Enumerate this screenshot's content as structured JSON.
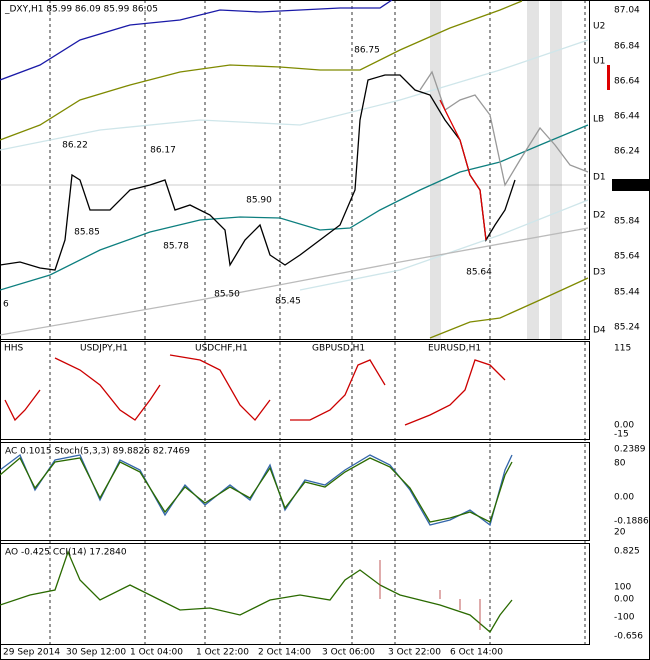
{
  "header": {
    "symbol_info": "_DXY,H1  85.99 86.09 85.99 86.05"
  },
  "price_axis": {
    "labels": [
      "87.04",
      "86.84",
      "86.64",
      "86.44",
      "86.24",
      "85.84",
      "85.64",
      "85.44",
      "85.24"
    ],
    "current": "86.05"
  },
  "pivot_labels": [
    "U2",
    "U1",
    "LB",
    "D1",
    "D2",
    "D3",
    "D4"
  ],
  "annotations": [
    "86.22",
    "85.85",
    "86.17",
    "85.78",
    "85.90",
    "85.50",
    "85.45",
    "86.75",
    "85.64"
  ],
  "left_edge_label": "6",
  "panel2": {
    "symbols": [
      "HHS",
      "USDJPY,H1",
      "USDCHF,H1",
      "GBPUSD,H1",
      "EURUSD,H1"
    ],
    "axis": [
      "115",
      "0.00",
      "-15"
    ]
  },
  "panel3": {
    "title": "AC 0.1015  Stoch(5,3,3) 89.8826 82.7469",
    "axis": [
      "0.2389",
      "80",
      "0.00",
      "-0.1886",
      "20"
    ]
  },
  "panel4": {
    "title": "AO -0.425  CCI(14) 17.2840",
    "axis": [
      "0.825",
      "100",
      "0.00",
      "-100",
      "-0.656"
    ]
  },
  "time_axis": [
    "29 Sep 2014",
    "30 Sep 12:00",
    "1 Oct 04:00",
    "1 Oct 22:00",
    "2 Oct 14:00",
    "3 Oct 06:00",
    "3 Oct 22:00",
    "6 Oct 14:00"
  ]
}
